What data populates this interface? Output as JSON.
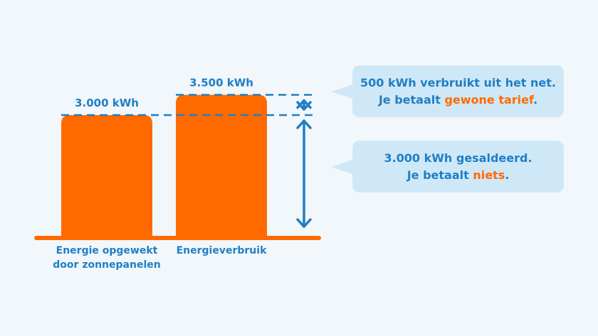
{
  "chart_data": {
    "type": "bar",
    "categories": [
      "Energie opgewekt\ndoor zonnepanelen",
      "Energieverbruik"
    ],
    "values": [
      3000,
      3500
    ],
    "value_labels": [
      "3.000 kWh",
      "3.500 kWh"
    ],
    "unit": "kWh",
    "ylim": [
      0,
      4000
    ],
    "grid": false,
    "colors": {
      "bar": "#ff6a00",
      "accent": "#1f7fc4",
      "dash": "#1f7fc4"
    }
  },
  "callouts": {
    "top": {
      "line1": "500 kWh verbruikt uit het net.",
      "line2_prefix": "Je betaalt ",
      "line2_highlight": "gewone tarief",
      "line2_suffix": "."
    },
    "bottom": {
      "line1": "3.000 kWh gesaldeerd.",
      "line2_prefix": "Je betaalt ",
      "line2_highlight": "niets",
      "line2_suffix": "."
    }
  }
}
